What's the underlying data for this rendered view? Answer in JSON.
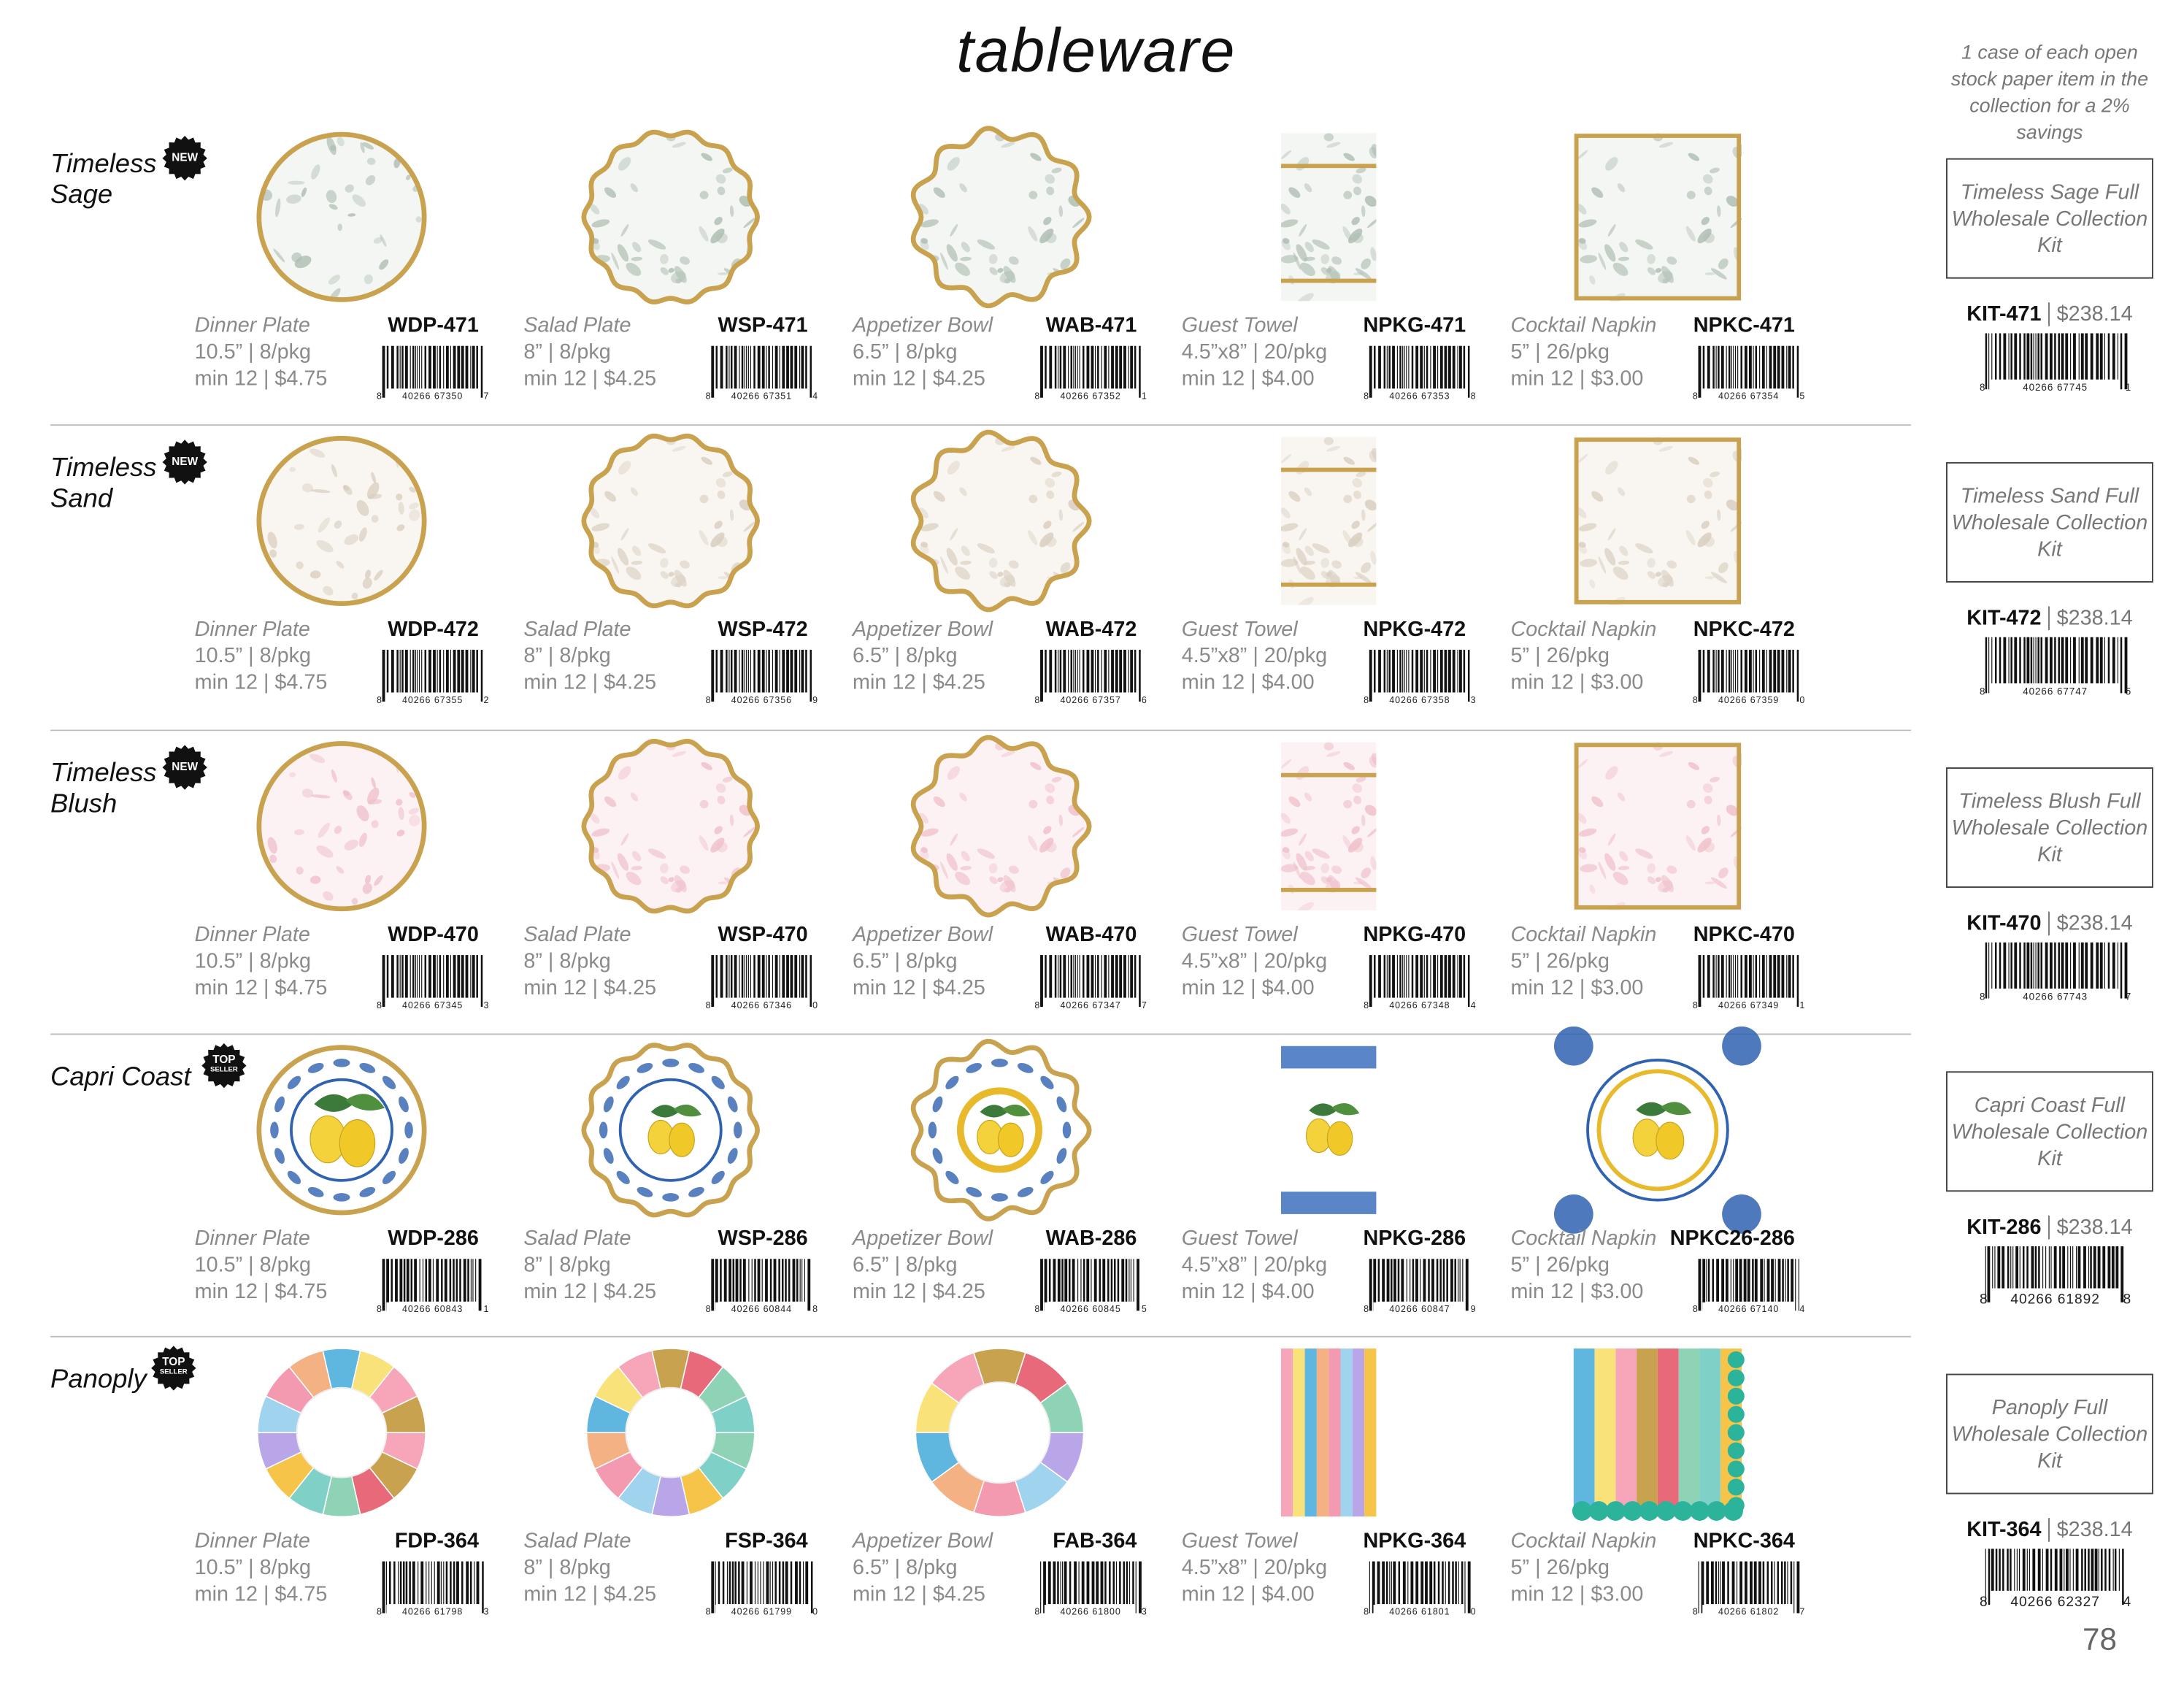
{
  "header": {
    "title": "tableware",
    "note": "1 case of each open stock paper item in the collection for a 2% savings"
  },
  "collections": [
    {
      "name": [
        "Timeless",
        "Sage"
      ],
      "badge": [
        "NEW"
      ],
      "items": [
        {
          "name": "Dinner Plate",
          "sku": "WDP-471",
          "size": "10.5” | 8/pkg",
          "min": "min 12 | $4.75",
          "barcode": [
            "8",
            "40266 67350",
            "7"
          ]
        },
        {
          "name": "Salad Plate",
          "sku": "WSP-471",
          "size": "8” | 8/pkg",
          "min": "min 12 | $4.25",
          "barcode": [
            "8",
            "40266 67351",
            "4"
          ]
        },
        {
          "name": "Appetizer Bowl",
          "sku": "WAB-471",
          "size": "6.5” | 8/pkg",
          "min": "min 12 | $4.25",
          "barcode": [
            "8",
            "40266 67352",
            "1"
          ]
        },
        {
          "name": "Guest Towel",
          "sku": "NPKG-471",
          "size": "4.5”x8” | 20/pkg",
          "min": "min 12 | $4.00",
          "barcode": [
            "8",
            "40266 67353",
            "8"
          ]
        },
        {
          "name": "Cocktail Napkin",
          "sku": "NPKC-471",
          "size": "5” | 26/pkg",
          "min": "min 12 | $3.00",
          "barcode": [
            "8",
            "40266 67354",
            "5"
          ]
        }
      ],
      "kit": {
        "label": "Timeless Sage Full Wholesale Collection Kit",
        "sku": "KIT-471",
        "price": "$238.14",
        "barcode": [
          "8",
          "40266 67745",
          "1"
        ]
      }
    },
    {
      "name": [
        "Timeless",
        "Sand"
      ],
      "badge": [
        "NEW"
      ],
      "items": [
        {
          "name": "Dinner Plate",
          "sku": "WDP-472",
          "size": "10.5” | 8/pkg",
          "min": "min 12 | $4.75",
          "barcode": [
            "8",
            "40266 67355",
            "2"
          ]
        },
        {
          "name": "Salad Plate",
          "sku": "WSP-472",
          "size": "8” | 8/pkg",
          "min": "min 12 | $4.25",
          "barcode": [
            "8",
            "40266 67356",
            "9"
          ]
        },
        {
          "name": "Appetizer Bowl",
          "sku": "WAB-472",
          "size": "6.5” | 8/pkg",
          "min": "min 12 | $4.25",
          "barcode": [
            "8",
            "40266 67357",
            "6"
          ]
        },
        {
          "name": "Guest Towel",
          "sku": "NPKG-472",
          "size": "4.5”x8” | 20/pkg",
          "min": "min 12 | $4.00",
          "barcode": [
            "8",
            "40266 67358",
            "3"
          ]
        },
        {
          "name": "Cocktail Napkin",
          "sku": "NPKC-472",
          "size": "5” | 26/pkg",
          "min": "min 12 | $3.00",
          "barcode": [
            "8",
            "40266 67359",
            "0"
          ]
        }
      ],
      "kit": {
        "label": "Timeless Sand Full Wholesale Collection Kit",
        "sku": "KIT-472",
        "price": "$238.14",
        "barcode": [
          "8",
          "40266 67747",
          "5"
        ]
      }
    },
    {
      "name": [
        "Timeless",
        "Blush"
      ],
      "badge": [
        "NEW"
      ],
      "items": [
        {
          "name": "Dinner Plate",
          "sku": "WDP-470",
          "size": "10.5” | 8/pkg",
          "min": "min 12 | $4.75",
          "barcode": [
            "8",
            "40266 67345",
            "3"
          ]
        },
        {
          "name": "Salad Plate",
          "sku": "WSP-470",
          "size": "8” | 8/pkg",
          "min": "min 12 | $4.25",
          "barcode": [
            "8",
            "40266 67346",
            "0"
          ]
        },
        {
          "name": "Appetizer Bowl",
          "sku": "WAB-470",
          "size": "6.5” | 8/pkg",
          "min": "min 12 | $4.25",
          "barcode": [
            "8",
            "40266 67347",
            "7"
          ]
        },
        {
          "name": "Guest Towel",
          "sku": "NPKG-470",
          "size": "4.5”x8” | 20/pkg",
          "min": "min 12 | $4.00",
          "barcode": [
            "8",
            "40266 67348",
            "4"
          ]
        },
        {
          "name": "Cocktail Napkin",
          "sku": "NPKC-470",
          "size": "5” | 26/pkg",
          "min": "min 12 | $3.00",
          "barcode": [
            "8",
            "40266 67349",
            "1"
          ]
        }
      ],
      "kit": {
        "label": "Timeless Blush Full Wholesale Collection Kit",
        "sku": "KIT-470",
        "price": "$238.14",
        "barcode": [
          "8",
          "40266 67743",
          "7"
        ]
      }
    },
    {
      "name": [
        "Capri Coast"
      ],
      "badge": [
        "TOP",
        "SELLER"
      ],
      "items": [
        {
          "name": "Dinner Plate",
          "sku": "WDP-286",
          "size": "10.5” | 8/pkg",
          "min": "min 12 | $4.75",
          "barcode": [
            "8",
            "40266 60843",
            "1"
          ]
        },
        {
          "name": "Salad Plate",
          "sku": "WSP-286",
          "size": "8” | 8/pkg",
          "min": "min 12 | $4.25",
          "barcode": [
            "8",
            "40266 60844",
            "8"
          ]
        },
        {
          "name": "Appetizer Bowl",
          "sku": "WAB-286",
          "size": "6.5” | 8/pkg",
          "min": "min 12 | $4.25",
          "barcode": [
            "8",
            "40266 60845",
            "5"
          ]
        },
        {
          "name": "Guest Towel",
          "sku": "NPKG-286",
          "size": "4.5”x8” | 20/pkg",
          "min": "min 12 | $4.00",
          "barcode": [
            "8",
            "40266 60847",
            "9"
          ]
        },
        {
          "name": "Cocktail Napkin",
          "sku": "NPKC26-286",
          "size": "5” | 26/pkg",
          "min": "min 12 | $3.00",
          "barcode": [
            "8",
            "40266 67140",
            "4"
          ]
        }
      ],
      "kit": {
        "label": "Capri Coast Full Wholesale Collection Kit",
        "sku": "KIT-286",
        "price": "$238.14",
        "barcode": [
          "8",
          "40266 61892",
          "8"
        ]
      }
    },
    {
      "name": [
        "Panoply"
      ],
      "badge": [
        "TOP",
        "SELLER"
      ],
      "items": [
        {
          "name": "Dinner Plate",
          "sku": "FDP-364",
          "size": "10.5” | 8/pkg",
          "min": "min 12 | $4.75",
          "barcode": [
            "8",
            "40266 61798",
            "3"
          ]
        },
        {
          "name": "Salad Plate",
          "sku": "FSP-364",
          "size": "8” | 8/pkg",
          "min": "min 12 | $4.25",
          "barcode": [
            "8",
            "40266 61799",
            "0"
          ]
        },
        {
          "name": "Appetizer Bowl",
          "sku": "FAB-364",
          "size": "6.5” | 8/pkg",
          "min": "min 12 | $4.25",
          "barcode": [
            "8",
            "40266 61800",
            "3"
          ]
        },
        {
          "name": "Guest Towel",
          "sku": "NPKG-364",
          "size": "4.5”x8” | 20/pkg",
          "min": "min 12 | $4.00",
          "barcode": [
            "8",
            "40266 61801",
            "0"
          ]
        },
        {
          "name": "Cocktail Napkin",
          "sku": "NPKC-364",
          "size": "5” | 26/pkg",
          "min": "min 12 | $3.00",
          "barcode": [
            "8",
            "40266 61802",
            "7"
          ]
        }
      ],
      "kit": {
        "label": "Panoply Full Wholesale Collection Kit",
        "sku": "KIT-364",
        "price": "$238.14",
        "barcode": [
          "8",
          "40266 62327",
          "4"
        ]
      }
    }
  ],
  "footer": {
    "page_number": "78"
  }
}
